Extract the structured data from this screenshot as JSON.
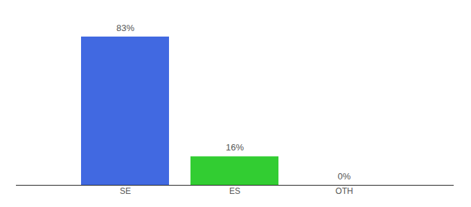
{
  "chart_data": {
    "type": "bar",
    "categories": [
      "SE",
      "ES",
      "OTH"
    ],
    "values": [
      83,
      16,
      0
    ],
    "value_labels": [
      "83%",
      "16%",
      "0%"
    ],
    "colors": [
      "#4169e1",
      "#32cd32",
      "#808080"
    ],
    "data_labels": true,
    "tick_labels": "x"
  }
}
